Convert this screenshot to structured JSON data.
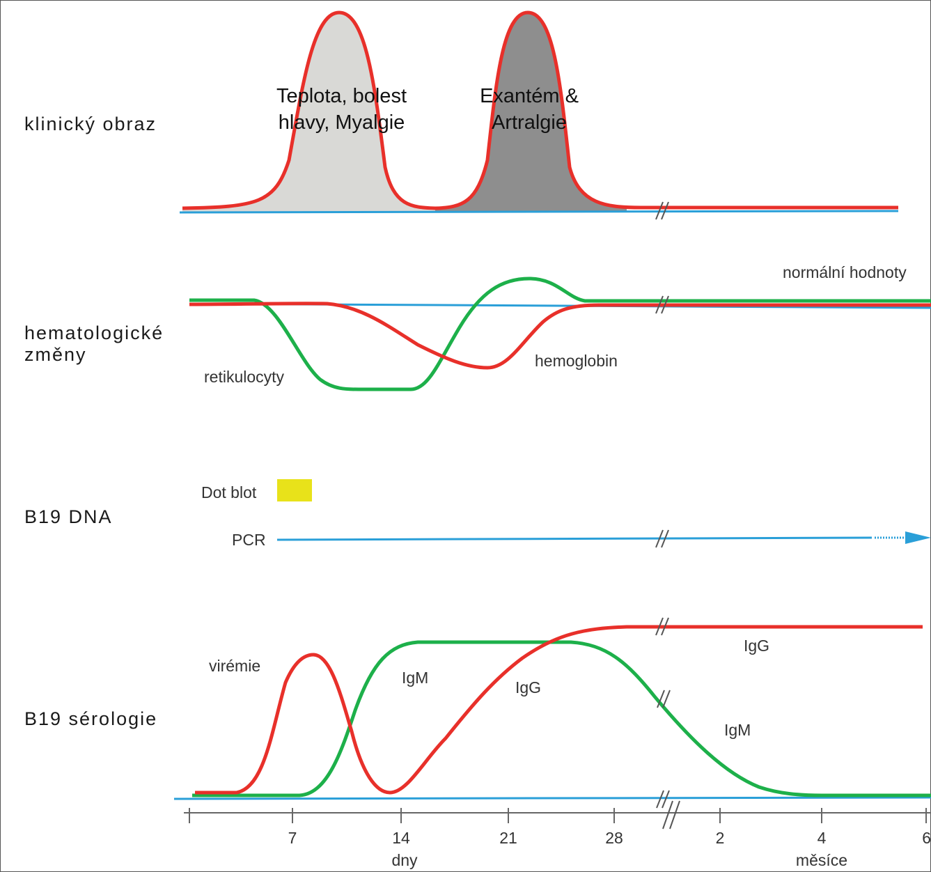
{
  "rows": {
    "clinical": "klinický obraz",
    "hematology_line1": "hematologické",
    "hematology_line2": "změny",
    "dna": "B19 DNA",
    "serology": "B19 sérologie"
  },
  "clinical": {
    "phase1_line1": "Teplota, bolest",
    "phase1_line2": "hlavy, Myalgie",
    "phase2_line1": "Exantém &",
    "phase2_line2": "Artralgie"
  },
  "hematology": {
    "normal": "normální hodnoty",
    "reticulocytes": "retikulocyty",
    "hemoglobin": "hemoglobin"
  },
  "dna": {
    "dot_blot": "Dot blot",
    "pcr": "PCR"
  },
  "serology": {
    "viremia": "virémie",
    "igm_early": "IgM",
    "igg_early": "IgG",
    "igg_late": "IgG",
    "igm_late": "IgM"
  },
  "axis": {
    "days_ticks": [
      "7",
      "14",
      "21",
      "28"
    ],
    "months_ticks": [
      "2",
      "4",
      "6"
    ],
    "days_unit": "dny",
    "months_unit": "měsíce"
  },
  "colors": {
    "red": "#e8302a",
    "green": "#1db04a",
    "blue": "#2a9fd8",
    "light_fill": "#d9d9d6",
    "dark_fill": "#8e8e8e",
    "dot_blot": "#e8e21a"
  }
}
